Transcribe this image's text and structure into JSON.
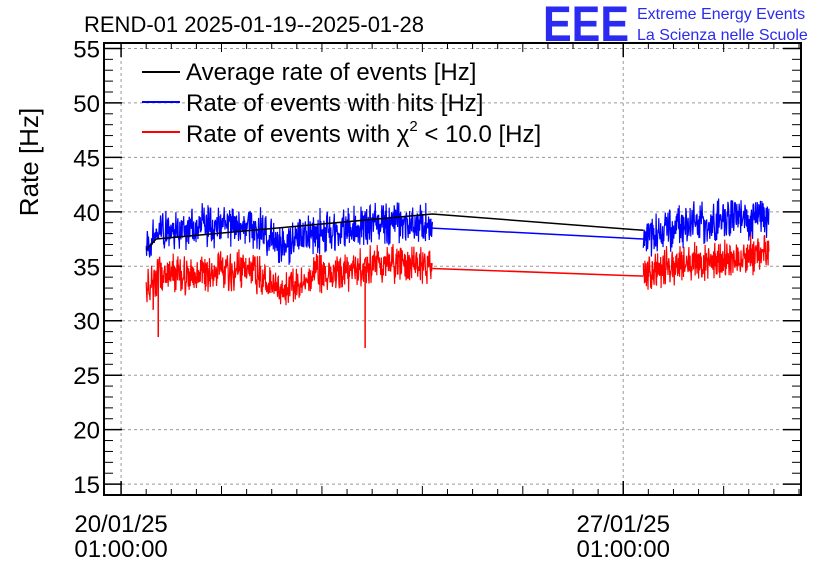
{
  "colors": {
    "average": "#000000",
    "hits": "#0000ff",
    "chi2": "#ff0000",
    "logo": "#2a2af0",
    "grid": "#9a9a9a"
  },
  "logo": {
    "mark": "EEE",
    "line1": "Extreme Energy Events",
    "line2": "La Scienza nelle Scuole"
  },
  "chart_data": {
    "type": "line",
    "title": "REND-01 2025-01-19--2025-01-28",
    "ylabel": "Rate [Hz]",
    "xlabel": "",
    "ylim": [
      14,
      55.5
    ],
    "xlim_days": [
      -0.17,
      6.77
    ],
    "x_units": "days since 20/01/25 01:00:00",
    "grid": true,
    "legend_position": "top-left",
    "y_ticks": [
      15,
      20,
      25,
      30,
      35,
      40,
      45,
      50,
      55
    ],
    "x_ticks": [
      {
        "day": 0,
        "date": "20/01/25",
        "time": "01:00:00"
      },
      {
        "day": 5,
        "date": "27/01/25",
        "time": "01:00:00"
      }
    ],
    "legend": [
      {
        "key": "average",
        "label": "Average rate of events [Hz]"
      },
      {
        "key": "hits",
        "label": "Rate of events with hits [Hz]"
      },
      {
        "key": "chi2",
        "label_prefix": "Rate of events with ",
        "label_symbol": "χ",
        "label_sup": "2",
        "label_suffix": " < 10.0 [Hz]"
      }
    ],
    "series": [
      {
        "key": "average",
        "name": "Average rate of events [Hz]",
        "x": [
          0.25,
          0.35,
          3.1,
          5.2
        ],
        "y": [
          36.5,
          37.5,
          39.8,
          38.3
        ]
      },
      {
        "key": "hits",
        "name": "Rate of events with hits [Hz]",
        "x": [
          0.25,
          0.3,
          0.35,
          0.5,
          0.75,
          1.0,
          1.25,
          1.5,
          1.6,
          1.75,
          2.0,
          2.25,
          2.5,
          2.75,
          3.0,
          3.1,
          5.2,
          5.3,
          5.5,
          5.75,
          6.0,
          6.25,
          6.45
        ],
        "y": [
          36.5,
          37.8,
          38.0,
          38.3,
          38.6,
          38.7,
          38.8,
          37.6,
          36.9,
          37.6,
          38.2,
          38.2,
          38.9,
          39.0,
          38.9,
          38.5,
          37.5,
          38.1,
          38.5,
          38.9,
          39.2,
          39.4,
          39.6
        ],
        "band": 2.4
      },
      {
        "key": "chi2",
        "name": "Rate of events with χ² < 10.0 [Hz]",
        "x": [
          0.25,
          0.3,
          0.35,
          0.5,
          0.75,
          1.0,
          1.25,
          1.5,
          1.6,
          1.75,
          2.0,
          2.25,
          2.5,
          2.75,
          3.0,
          3.1,
          5.2,
          5.3,
          5.5,
          5.75,
          6.0,
          6.25,
          6.45
        ],
        "y": [
          32.5,
          33.6,
          34.0,
          34.2,
          34.5,
          34.6,
          34.7,
          33.4,
          32.7,
          33.4,
          34.4,
          34.5,
          35.2,
          35.3,
          35.2,
          34.8,
          34.1,
          34.6,
          35.0,
          35.3,
          35.6,
          35.8,
          35.9
        ],
        "band": 2.2,
        "dips": [
          {
            "x": 0.37,
            "y": 28.5
          },
          {
            "x": 0.32,
            "y": 31.0
          },
          {
            "x": 2.43,
            "y": 27.5
          }
        ]
      }
    ]
  }
}
